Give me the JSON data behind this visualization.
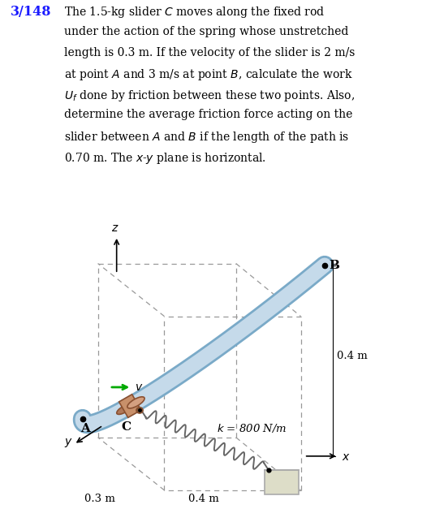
{
  "bg_color": "#ffffff",
  "text_color": "#000000",
  "title_number": "3/148",
  "title_number_color": "#1a1aff",
  "problem_text_lines": [
    "The 1.5-kg slider $C$ moves along the fixed rod",
    "under the action of the spring whose unstretched",
    "length is 0.3 m. If the velocity of the slider is 2 m/s",
    "at point $A$ and 3 m/s at point $B$, calculate the work",
    "$U_f$ done by friction between these two points. Also,",
    "determine the average friction force acting on the",
    "slider between $A$ and $B$ if the length of the path is",
    "0.70 m. The $x$-$y$ plane is horizontal."
  ],
  "rod_color": "#c5daea",
  "rod_color_edge": "#7aaac8",
  "spring_color": "#666666",
  "slider_color": "#c8906a",
  "slider_edge_color": "#8a5030",
  "anchor_color": "#ddddc8",
  "anchor_edge_color": "#aaaaaa",
  "dashed_color": "#999999",
  "arrow_color": "#00aa00",
  "label_color": "#000000",
  "dim_label_03": "0.3 m",
  "dim_label_04_bottom": "0.4 m",
  "dim_label_04_right": "0.4 m",
  "label_A": "A",
  "label_B": "B",
  "label_C": "C",
  "label_v": "$v$",
  "label_k": "$k$ = 800 N/m",
  "label_x": "$x$",
  "label_y": "$y$",
  "label_z": "$z$"
}
